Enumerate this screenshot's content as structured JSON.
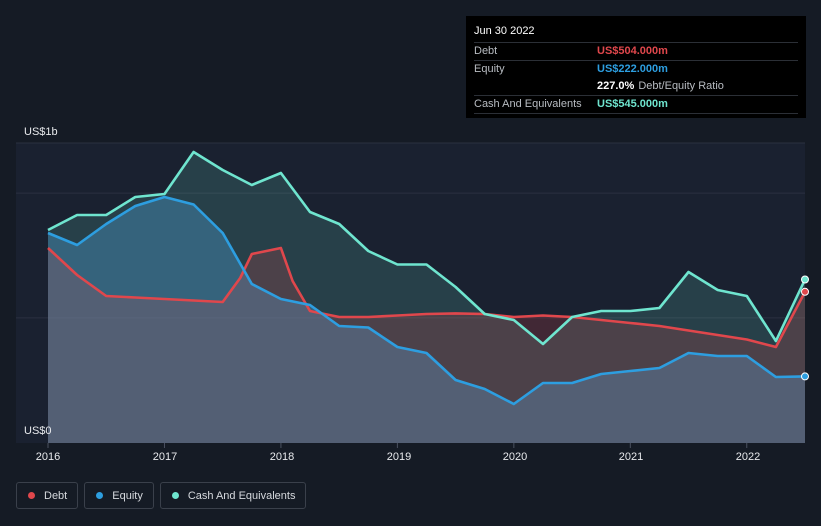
{
  "chart_data": {
    "type": "area",
    "title": "",
    "ylabel_top": "US$1b",
    "ylabel_bottom": "US$0",
    "x_ticks": [
      "2016",
      "2017",
      "2018",
      "2019",
      "2020",
      "2021",
      "2022"
    ],
    "xlim": [
      2016.0,
      2022.5
    ],
    "ylim": [
      0,
      1000
    ],
    "series": [
      {
        "name": "Debt",
        "color": "#e0474c",
        "points": [
          [
            2016.0,
            650
          ],
          [
            2016.25,
            560
          ],
          [
            2016.5,
            490
          ],
          [
            2016.75,
            485
          ],
          [
            2017.0,
            480
          ],
          [
            2017.25,
            475
          ],
          [
            2017.5,
            470
          ],
          [
            2017.65,
            550
          ],
          [
            2017.75,
            630
          ],
          [
            2018.0,
            650
          ],
          [
            2018.1,
            540
          ],
          [
            2018.25,
            440
          ],
          [
            2018.5,
            420
          ],
          [
            2018.75,
            420
          ],
          [
            2019.0,
            425
          ],
          [
            2019.25,
            430
          ],
          [
            2019.5,
            432
          ],
          [
            2019.75,
            430
          ],
          [
            2020.0,
            420
          ],
          [
            2020.25,
            425
          ],
          [
            2020.5,
            420
          ],
          [
            2020.75,
            410
          ],
          [
            2021.0,
            400
          ],
          [
            2021.25,
            390
          ],
          [
            2021.5,
            375
          ],
          [
            2021.75,
            360
          ],
          [
            2022.0,
            345
          ],
          [
            2022.25,
            320
          ],
          [
            2022.5,
            504
          ]
        ]
      },
      {
        "name": "Equity",
        "color": "#2d9ee0",
        "points": [
          [
            2016.0,
            700
          ],
          [
            2016.25,
            660
          ],
          [
            2016.5,
            730
          ],
          [
            2016.75,
            790
          ],
          [
            2017.0,
            820
          ],
          [
            2017.25,
            795
          ],
          [
            2017.5,
            700
          ],
          [
            2017.75,
            530
          ],
          [
            2018.0,
            480
          ],
          [
            2018.25,
            460
          ],
          [
            2018.5,
            390
          ],
          [
            2018.75,
            385
          ],
          [
            2019.0,
            320
          ],
          [
            2019.25,
            300
          ],
          [
            2019.5,
            210
          ],
          [
            2019.75,
            180
          ],
          [
            2020.0,
            130
          ],
          [
            2020.25,
            200
          ],
          [
            2020.5,
            200
          ],
          [
            2020.75,
            230
          ],
          [
            2021.0,
            240
          ],
          [
            2021.25,
            250
          ],
          [
            2021.5,
            300
          ],
          [
            2021.75,
            290
          ],
          [
            2022.0,
            290
          ],
          [
            2022.25,
            220
          ],
          [
            2022.5,
            222
          ]
        ]
      },
      {
        "name": "Cash And Equivalents",
        "color": "#6fe5cf",
        "points": [
          [
            2016.0,
            710
          ],
          [
            2016.25,
            760
          ],
          [
            2016.5,
            760
          ],
          [
            2016.75,
            820
          ],
          [
            2017.0,
            830
          ],
          [
            2017.25,
            970
          ],
          [
            2017.5,
            910
          ],
          [
            2017.75,
            860
          ],
          [
            2018.0,
            900
          ],
          [
            2018.25,
            770
          ],
          [
            2018.5,
            730
          ],
          [
            2018.75,
            640
          ],
          [
            2019.0,
            595
          ],
          [
            2019.25,
            595
          ],
          [
            2019.5,
            520
          ],
          [
            2019.75,
            430
          ],
          [
            2020.0,
            410
          ],
          [
            2020.25,
            330
          ],
          [
            2020.5,
            420
          ],
          [
            2020.75,
            440
          ],
          [
            2021.0,
            440
          ],
          [
            2021.25,
            450
          ],
          [
            2021.5,
            570
          ],
          [
            2021.75,
            510
          ],
          [
            2022.0,
            490
          ],
          [
            2022.25,
            340
          ],
          [
            2022.5,
            545
          ]
        ]
      }
    ],
    "tooltip": {
      "date": "Jun 30 2022",
      "debt_label": "Debt",
      "debt_value": "US$504.000m",
      "equity_label": "Equity",
      "equity_value": "US$222.000m",
      "ratio_value": "227.0%",
      "ratio_label": "Debt/Equity Ratio",
      "cash_label": "Cash And Equivalents",
      "cash_value": "US$545.000m"
    },
    "legend": [
      "Debt",
      "Equity",
      "Cash And Equivalents"
    ]
  }
}
